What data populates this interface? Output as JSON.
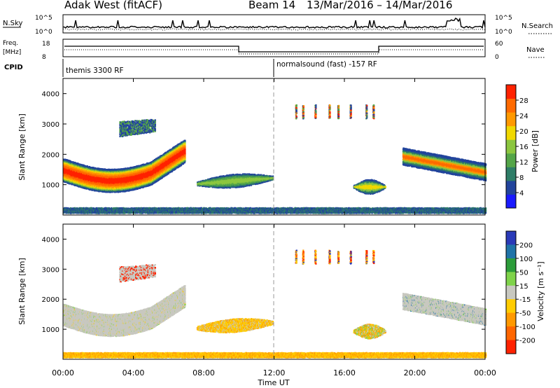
{
  "header": {
    "station": "Adak West (fitACF)",
    "beam": "Beam 14",
    "date_range": "13/Mar/2016 – 14/Mar/2016"
  },
  "sky_panel": {
    "left_label": "N.Sky",
    "right_label": "N.Search",
    "left_ticks": [
      "10^5",
      "10^0"
    ],
    "right_ticks": [
      "10^5",
      "10^0"
    ]
  },
  "freq_panel": {
    "left_label_1": "Freq.",
    "left_label_2": "[MHz]",
    "right_label": "Nave",
    "left_ticks": [
      "18",
      "8"
    ],
    "right_ticks": [
      "60",
      "0"
    ]
  },
  "cpid_panel": {
    "label": "CPID",
    "mode_1": "themis 3300 RF",
    "mode_2": "normalsound (fast) -157 RF"
  },
  "colors": {
    "scale": [
      "#1a1aff",
      "#22449c",
      "#2e7d67",
      "#54a548",
      "#8cc63f",
      "#f0d800",
      "#ff9900",
      "#ff6a00",
      "#ff2200"
    ],
    "velocity": [
      "#2a3ab8",
      "#1f73a8",
      "#2c9c3a",
      "#7fd34a",
      "#c8c8c0",
      "#ffcc00",
      "#ff9900",
      "#ff6600",
      "#ff2200"
    ]
  },
  "chart_data": [
    {
      "type": "heatmap",
      "title": "Power",
      "ylabel": "Slant Range [km]",
      "ylim": [
        0,
        4500
      ],
      "y_ticks": [
        "1000",
        "2000",
        "3000",
        "4000"
      ],
      "colorbar": {
        "label": "Power [dB]",
        "ticks": [
          "4",
          "8",
          "12",
          "16",
          "20",
          "24",
          "28"
        ],
        "range": [
          0,
          32
        ]
      }
    },
    {
      "type": "heatmap",
      "title": "Velocity",
      "ylabel": "Slant Range [km]",
      "xlabel": "Time UT",
      "ylim": [
        0,
        4500
      ],
      "y_ticks": [
        "1000",
        "2000",
        "3000",
        "4000"
      ],
      "x_ticks": [
        "00:00",
        "04:00",
        "08:00",
        "12:00",
        "16:00",
        "20:00",
        "00:00"
      ],
      "colorbar": {
        "label": "Velocity [m s⁻¹]",
        "ticks": [
          "200",
          "100",
          "50",
          "15",
          "-15",
          "-50",
          "-100",
          "-200"
        ]
      }
    }
  ]
}
